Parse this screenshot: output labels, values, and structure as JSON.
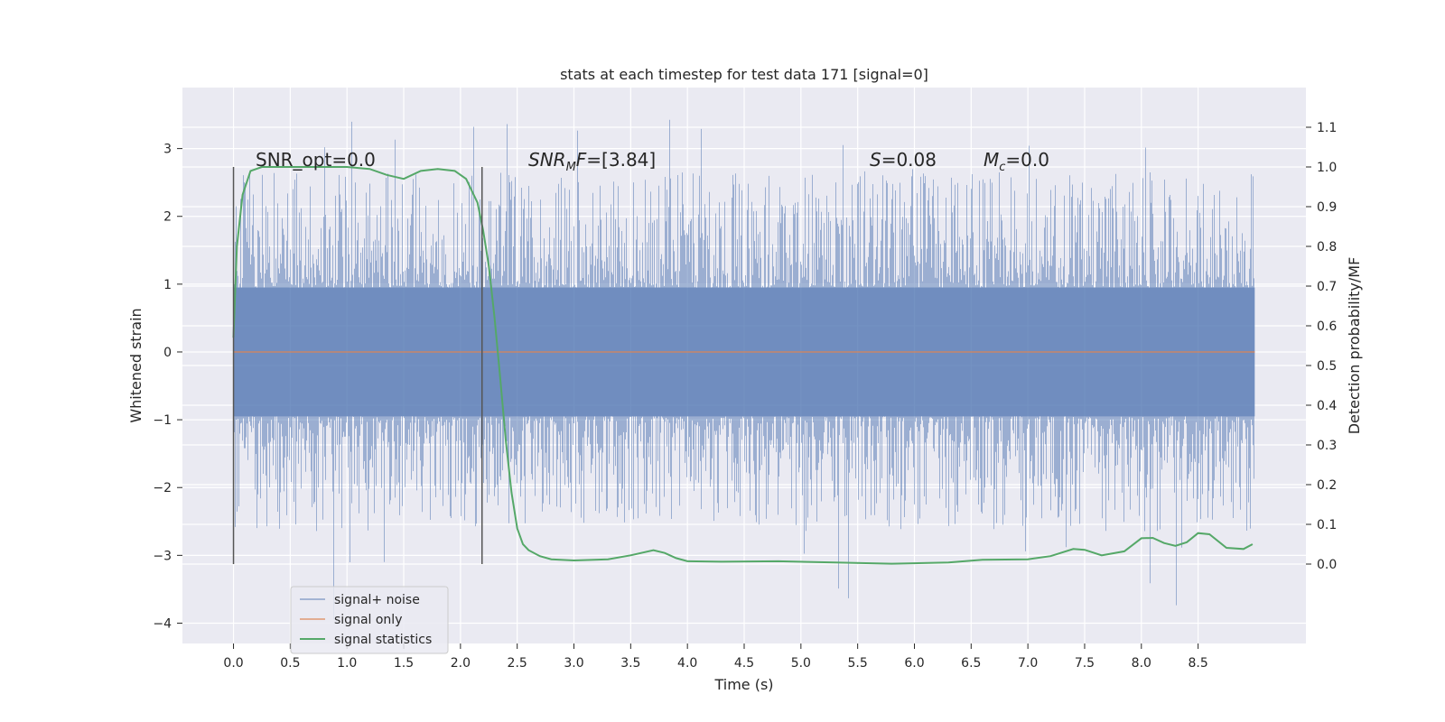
{
  "chart_data": {
    "type": "line",
    "title": "stats at each timestep for test data 171 [signal=0]",
    "xlabel": "Time (s)",
    "ylabel": "Whitened strain",
    "y2label": "Detection probability/MF",
    "xlim": [
      -0.45,
      9.45
    ],
    "ylim": [
      -4.3,
      3.9
    ],
    "y2lim": [
      -0.2,
      1.2
    ],
    "xticks": [
      "0.0",
      "0.5",
      "1.0",
      "1.5",
      "2.0",
      "2.5",
      "3.0",
      "3.5",
      "4.0",
      "4.5",
      "5.0",
      "5.5",
      "6.0",
      "6.5",
      "7.0",
      "7.5",
      "8.0",
      "8.5"
    ],
    "yticks": [
      "3",
      "2",
      "1",
      "0",
      "−1",
      "−2",
      "−3",
      "−4"
    ],
    "y2ticks": [
      "1.1",
      "1.0",
      "0.9",
      "0.8",
      "0.7",
      "0.6",
      "0.5",
      "0.4",
      "0.3",
      "0.2",
      "0.1",
      "0.0"
    ],
    "markers_x": [
      0.0,
      2.19
    ],
    "noise_band": {
      "t_start": 0.0,
      "t_end": 9.0,
      "typical_amplitude": 0.95,
      "peak_min": -4.0,
      "peak_max": 3.45
    },
    "series": [
      {
        "name": "signal+ noise",
        "color": "#4c72b0",
        "axis": "left"
      },
      {
        "name": "signal only",
        "color": "#dd8452",
        "axis": "left",
        "x": [
          0.0,
          9.0
        ],
        "values": [
          0.0,
          0.0
        ]
      },
      {
        "name": "signal statistics",
        "color": "#55a868",
        "axis": "right",
        "x": [
          0.0,
          0.03,
          0.08,
          0.15,
          0.25,
          0.4,
          0.7,
          1.0,
          1.2,
          1.35,
          1.5,
          1.65,
          1.8,
          1.95,
          2.05,
          2.15,
          2.2,
          2.25,
          2.3,
          2.35,
          2.4,
          2.45,
          2.5,
          2.55,
          2.6,
          2.7,
          2.8,
          3.0,
          3.3,
          3.5,
          3.7,
          3.8,
          3.9,
          4.0,
          4.3,
          4.8,
          5.3,
          5.8,
          6.3,
          6.6,
          7.0,
          7.2,
          7.4,
          7.5,
          7.65,
          7.85,
          8.0,
          8.1,
          8.2,
          8.3,
          8.4,
          8.5,
          8.6,
          8.75,
          8.9,
          8.98
        ],
        "values": [
          0.57,
          0.8,
          0.93,
          0.99,
          1.0,
          1.0,
          1.0,
          1.0,
          0.995,
          0.98,
          0.97,
          0.99,
          0.995,
          0.99,
          0.97,
          0.91,
          0.84,
          0.75,
          0.62,
          0.47,
          0.31,
          0.18,
          0.09,
          0.05,
          0.035,
          0.02,
          0.012,
          0.009,
          0.012,
          0.022,
          0.035,
          0.028,
          0.015,
          0.007,
          0.006,
          0.007,
          0.004,
          0.001,
          0.004,
          0.011,
          0.012,
          0.02,
          0.038,
          0.036,
          0.022,
          0.032,
          0.065,
          0.066,
          0.053,
          0.046,
          0.055,
          0.078,
          0.075,
          0.041,
          0.038,
          0.05
        ]
      }
    ],
    "annotations": [
      {
        "label": "SNR_opt",
        "value": "=0.0"
      },
      {
        "label": "SNR",
        "sub": "M",
        "suffix": "F",
        "value": "=[3.84]"
      },
      {
        "label": "S",
        "value": "=0.08"
      },
      {
        "label": "M",
        "sub": "c",
        "value": "=0.0"
      }
    ],
    "legend": {
      "position": "lower-left",
      "entries": [
        "signal+ noise",
        "signal only",
        "signal statistics"
      ]
    }
  }
}
